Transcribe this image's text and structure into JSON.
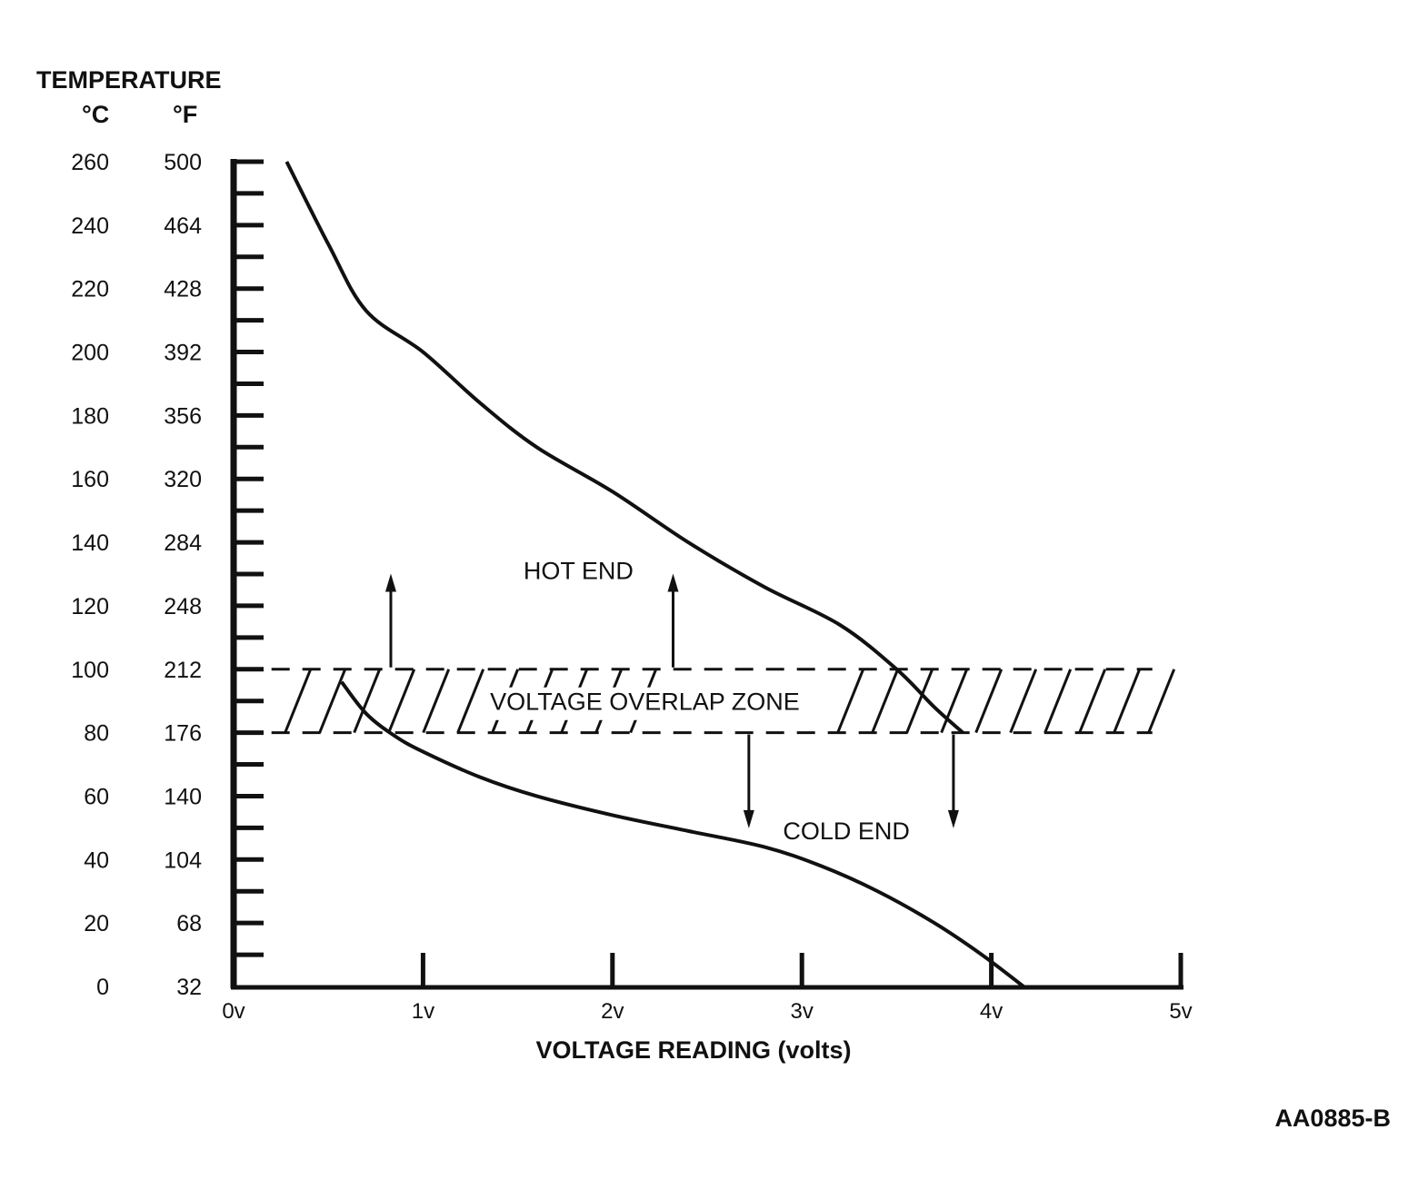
{
  "chart_data": {
    "type": "line",
    "title": "",
    "ylabel": "TEMPERATURE",
    "y_units": [
      "°C",
      "°F"
    ],
    "xlabel": "VOLTAGE READING (volts)",
    "xlim": [
      0,
      5
    ],
    "ylim": [
      0,
      260
    ],
    "x_ticks": [
      {
        "v": 0,
        "label": "0v"
      },
      {
        "v": 1,
        "label": "1v"
      },
      {
        "v": 2,
        "label": "2v"
      },
      {
        "v": 3,
        "label": "3v"
      },
      {
        "v": 4,
        "label": "4v"
      },
      {
        "v": 5,
        "label": "5v"
      }
    ],
    "y_ticks": [
      {
        "c": 0,
        "c_label": "0",
        "f_label": "32"
      },
      {
        "c": 20,
        "c_label": "20",
        "f_label": "68"
      },
      {
        "c": 40,
        "c_label": "40",
        "f_label": "104"
      },
      {
        "c": 60,
        "c_label": "60",
        "f_label": "140"
      },
      {
        "c": 80,
        "c_label": "80",
        "f_label": "176"
      },
      {
        "c": 100,
        "c_label": "100",
        "f_label": "212"
      },
      {
        "c": 120,
        "c_label": "120",
        "f_label": "248"
      },
      {
        "c": 140,
        "c_label": "140",
        "f_label": "284"
      },
      {
        "c": 160,
        "c_label": "160",
        "f_label": "320"
      },
      {
        "c": 180,
        "c_label": "180",
        "f_label": "356"
      },
      {
        "c": 200,
        "c_label": "200",
        "f_label": "392"
      },
      {
        "c": 220,
        "c_label": "220",
        "f_label": "428"
      },
      {
        "c": 240,
        "c_label": "240",
        "f_label": "464"
      },
      {
        "c": 260,
        "c_label": "260",
        "f_label": "500"
      }
    ],
    "series": [
      {
        "key": "hot",
        "points": [
          [
            0.28,
            260
          ],
          [
            0.5,
            234
          ],
          [
            0.7,
            213
          ],
          [
            1.0,
            200
          ],
          [
            1.3,
            184
          ],
          [
            1.6,
            170
          ],
          [
            2.0,
            156
          ],
          [
            2.4,
            140
          ],
          [
            2.8,
            126
          ],
          [
            3.2,
            114
          ],
          [
            3.5,
            100
          ],
          [
            3.7,
            88
          ],
          [
            3.85,
            80
          ]
        ]
      },
      {
        "key": "cold",
        "points": [
          [
            0.57,
            96
          ],
          [
            0.7,
            86
          ],
          [
            0.85,
            79
          ],
          [
            1.0,
            74
          ],
          [
            1.3,
            66
          ],
          [
            1.6,
            60
          ],
          [
            2.0,
            54
          ],
          [
            2.4,
            49
          ],
          [
            2.8,
            44
          ],
          [
            3.1,
            38
          ],
          [
            3.4,
            30
          ],
          [
            3.7,
            20
          ],
          [
            3.95,
            10
          ],
          [
            4.17,
            0
          ]
        ]
      }
    ],
    "overlap_zone": {
      "y_range": [
        80,
        100
      ],
      "x_range": [
        0.2,
        4.85
      ],
      "label": "VOLTAGE OVERLAP ZONE"
    },
    "annotations": {
      "hot_end": {
        "text": "HOT END",
        "x": 1.53,
        "y": 131,
        "arrows_up_x": [
          0.83,
          2.32
        ]
      },
      "cold_end": {
        "text": "COLD END",
        "x": 2.9,
        "y": 49,
        "arrows_down_x": [
          2.72,
          3.8
        ]
      }
    },
    "grid": false,
    "legend": "none",
    "figure_code": "AA0885-B"
  }
}
